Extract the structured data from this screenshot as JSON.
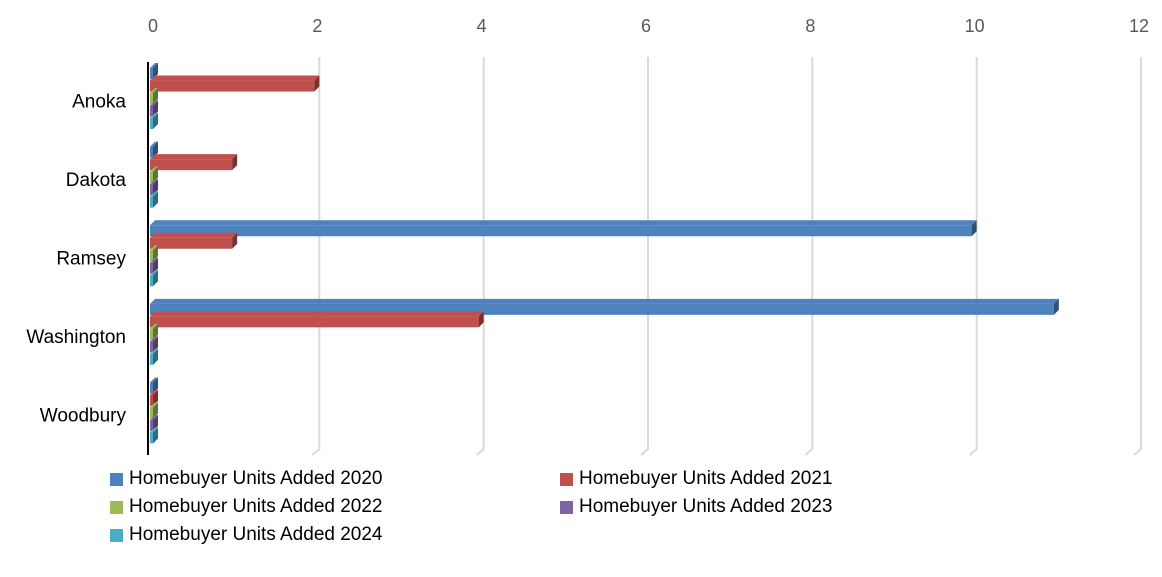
{
  "chart_data": {
    "type": "bar",
    "orientation": "horizontal",
    "categories": [
      "Anoka",
      "Dakota",
      "Ramsey",
      "Washington",
      "Woodbury"
    ],
    "series": [
      {
        "name": "Homebuyer Units Added 2020",
        "color": "#4F81BD",
        "values": [
          0,
          0,
          10,
          11,
          0
        ]
      },
      {
        "name": "Homebuyer Units Added 2021",
        "color": "#C0504D",
        "values": [
          2,
          1,
          1,
          4,
          0
        ]
      },
      {
        "name": "Homebuyer Units Added 2022",
        "color": "#9BBB59",
        "values": [
          0,
          0,
          0,
          0,
          0
        ]
      },
      {
        "name": "Homebuyer Units Added 2023",
        "color": "#8064A2",
        "values": [
          0,
          0,
          0,
          0,
          0
        ]
      },
      {
        "name": "Homebuyer Units Added 2024",
        "color": "#4BACC6",
        "values": [
          0,
          0,
          0,
          0,
          0
        ]
      }
    ],
    "xlim": [
      0,
      12
    ],
    "x_ticks": [
      "0",
      "2",
      "4",
      "6",
      "8",
      "10",
      "12"
    ],
    "x_axis_position": "top",
    "grid": true,
    "style": "3d",
    "legend_position": "bottom"
  }
}
